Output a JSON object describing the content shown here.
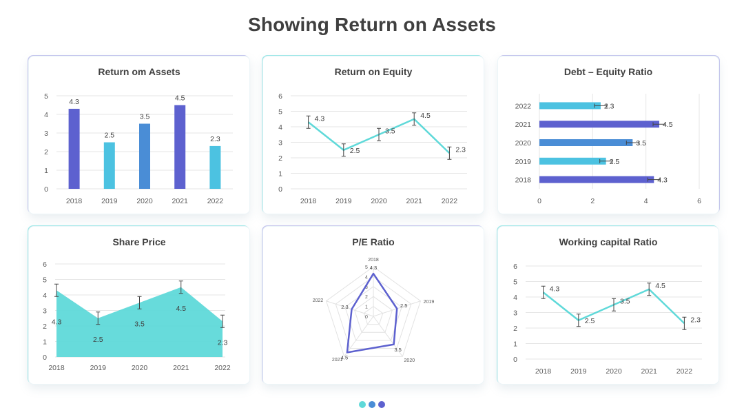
{
  "page": {
    "title": "Showing Return on Assets"
  },
  "colors": {
    "purple": "#5d61cf",
    "teal": "#4cc2e1",
    "steel": "#4a8dd6",
    "mint": "#5fd9d9",
    "grid": "#e6e6e6",
    "axisText": "#595959"
  },
  "pagination": {
    "dots": [
      "#5fd9d9",
      "#4a8dd6",
      "#5d61cf"
    ]
  },
  "chart_data": [
    {
      "id": "roa",
      "type": "bar",
      "title": "Return om Assets",
      "categories": [
        "2018",
        "2019",
        "2020",
        "2021",
        "2022"
      ],
      "values": [
        4.3,
        2.5,
        3.5,
        4.5,
        2.3
      ],
      "bar_colors": [
        "purple",
        "teal",
        "steel",
        "purple",
        "teal"
      ],
      "ylim": [
        0,
        5
      ],
      "yticks": [
        0,
        1,
        2,
        3,
        4,
        5
      ],
      "grid": true
    },
    {
      "id": "roe",
      "type": "line",
      "title": "Return on Equity",
      "categories": [
        "2018",
        "2019",
        "2020",
        "2021",
        "2022"
      ],
      "values": [
        4.3,
        2.5,
        3.5,
        4.5,
        2.3
      ],
      "error_bars": true,
      "ylim": [
        0,
        6
      ],
      "yticks": [
        0,
        1,
        2,
        3,
        4,
        5,
        6
      ],
      "grid": true
    },
    {
      "id": "der",
      "type": "bar",
      "orientation": "horizontal",
      "title": "Debt – Equity Ratio",
      "categories": [
        "2022",
        "2021",
        "2020",
        "2019",
        "2018"
      ],
      "values": [
        2.3,
        4.5,
        3.5,
        2.5,
        4.3
      ],
      "bar_colors": [
        "teal",
        "purple",
        "steel",
        "teal",
        "purple"
      ],
      "error_bars": true,
      "xlim": [
        0,
        6
      ],
      "xticks": [
        0,
        2,
        4,
        6
      ],
      "grid": true
    },
    {
      "id": "share",
      "type": "area",
      "title": "Share Price",
      "categories": [
        "2018",
        "2019",
        "2020",
        "2021",
        "2022"
      ],
      "values": [
        4.3,
        2.5,
        3.5,
        4.5,
        2.3
      ],
      "error_bars": true,
      "ylim": [
        0,
        6
      ],
      "yticks": [
        0,
        1,
        2,
        3,
        4,
        5,
        6
      ],
      "grid": true
    },
    {
      "id": "pe",
      "type": "radar",
      "title": "P/E Ratio",
      "categories": [
        "2018",
        "2019",
        "2020",
        "2021",
        "2022"
      ],
      "values": [
        4.3,
        2.5,
        3.5,
        4.5,
        2.3
      ],
      "rlim": [
        0,
        5
      ],
      "rticks": [
        0,
        1,
        2,
        3,
        4,
        5
      ]
    },
    {
      "id": "wcr",
      "type": "line",
      "title": "Working capital Ratio",
      "categories": [
        "2018",
        "2019",
        "2020",
        "2021",
        "2022"
      ],
      "values": [
        4.3,
        2.5,
        3.5,
        4.5,
        2.3
      ],
      "error_bars": true,
      "ylim": [
        0,
        6
      ],
      "yticks": [
        0,
        1,
        2,
        3,
        4,
        5,
        6
      ],
      "grid": true
    }
  ]
}
